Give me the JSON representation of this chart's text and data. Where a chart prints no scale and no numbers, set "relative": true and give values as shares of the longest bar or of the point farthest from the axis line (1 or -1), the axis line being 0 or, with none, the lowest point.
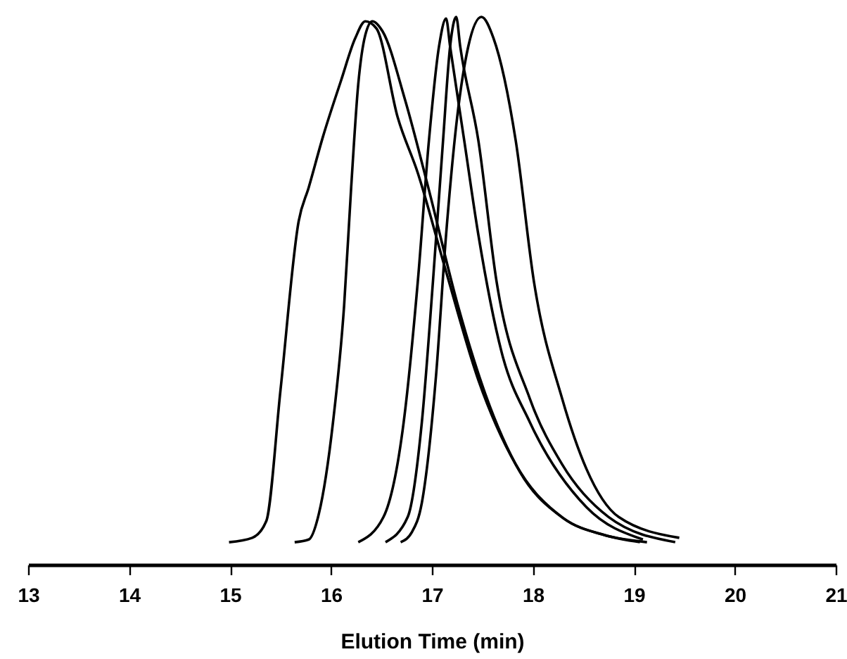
{
  "chart_data": {
    "type": "line",
    "xlabel": "Elution Time (min)",
    "relative": true,
    "xlim": [
      13,
      21
    ],
    "xticks": [
      13,
      14,
      15,
      16,
      17,
      18,
      19,
      20,
      21
    ],
    "grid": false,
    "marker": "none",
    "line_style": "solid",
    "series": [
      {
        "color": "#000000",
        "x": [
          14.99,
          15.22,
          15.36,
          15.5,
          15.68,
          15.78,
          15.92,
          16.1,
          16.24,
          16.34,
          16.45,
          16.66,
          16.86,
          17.14,
          17.46,
          17.83,
          18.3,
          18.71,
          19.06
        ],
        "values": [
          0.041,
          0.049,
          0.08,
          0.319,
          0.627,
          0.689,
          0.781,
          0.884,
          0.961,
          0.992,
          0.979,
          0.817,
          0.715,
          0.535,
          0.337,
          0.183,
          0.085,
          0.054,
          0.041
        ]
      },
      {
        "color": "#000000",
        "x": [
          15.64,
          15.78,
          15.88,
          16.02,
          16.13,
          16.2,
          16.27,
          16.34,
          16.41,
          16.51,
          16.73,
          16.97,
          17.25,
          17.53,
          17.87,
          18.3,
          18.71,
          19.13
        ],
        "values": [
          0.041,
          0.046,
          0.093,
          0.26,
          0.473,
          0.689,
          0.877,
          0.967,
          0.992,
          0.974,
          0.851,
          0.684,
          0.478,
          0.311,
          0.17,
          0.085,
          0.054,
          0.041
        ]
      },
      {
        "color": "#000000",
        "x": [
          16.27,
          16.52,
          16.72,
          16.86,
          16.97,
          17.07,
          17.14,
          17.18,
          17.32,
          17.46,
          17.69,
          17.97,
          18.53,
          19.09
        ],
        "values": [
          0.041,
          0.087,
          0.26,
          0.517,
          0.774,
          0.946,
          0.997,
          0.946,
          0.774,
          0.602,
          0.388,
          0.26,
          0.105,
          0.046
        ]
      },
      {
        "color": "#000000",
        "x": [
          16.54,
          16.76,
          16.9,
          17.01,
          17.11,
          17.18,
          17.24,
          17.28,
          17.46,
          17.64,
          17.97,
          18.29,
          18.75,
          19.41
        ],
        "values": [
          0.041,
          0.087,
          0.26,
          0.517,
          0.774,
          0.946,
          1.0,
          0.946,
          0.774,
          0.517,
          0.303,
          0.183,
          0.087,
          0.041
        ]
      },
      {
        "color": "#000000",
        "x": [
          16.69,
          16.8,
          16.9,
          17.04,
          17.14,
          17.25,
          17.36,
          17.49,
          17.61,
          17.83,
          18.01,
          18.29,
          18.53,
          18.85,
          19.45
        ],
        "values": [
          0.041,
          0.059,
          0.113,
          0.344,
          0.602,
          0.817,
          0.946,
          1.0,
          0.961,
          0.774,
          0.517,
          0.303,
          0.175,
          0.087,
          0.049
        ]
      }
    ]
  }
}
